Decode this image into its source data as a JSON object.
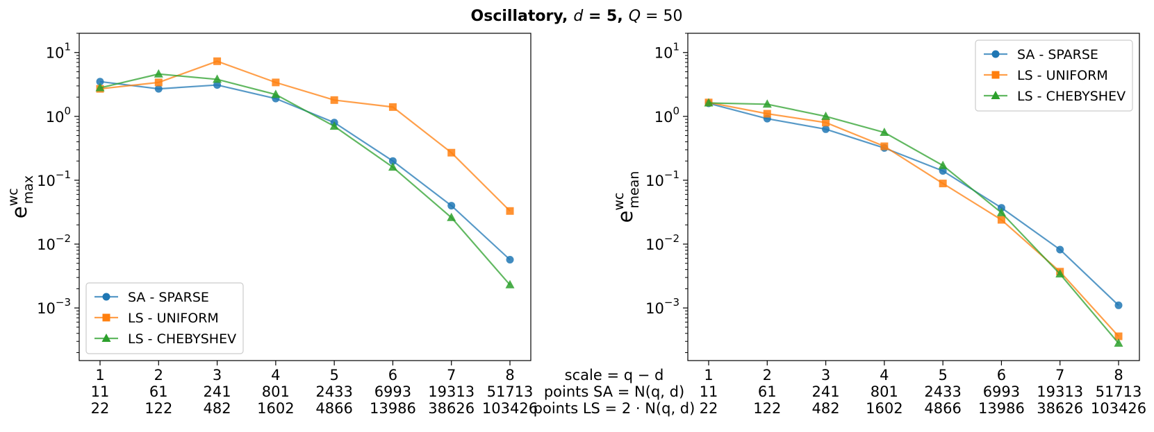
{
  "title": {
    "bold_part": "Oscillatory,",
    "d_var": "d",
    "d_value": " = 5,",
    "q_var": "Q",
    "q_value": " = 50"
  },
  "colors": {
    "sa": "#1f77b4",
    "ls_uniform": "#ff7f0e",
    "ls_chebyshev": "#2ca02c"
  },
  "x_row_labels": {
    "scale": "scale = q − d",
    "points_sa": "points SA = N(q, d)",
    "points_ls": "points LS = 2 · N(q, d)"
  },
  "chart_data": [
    {
      "type": "line",
      "yscale": "log",
      "ylabel": "e",
      "ylabel_sup": "wc",
      "ylabel_sub": "max",
      "ylim": [
        0.00015,
        20
      ],
      "yticks": [
        {
          "value": 10,
          "base": "10",
          "exp": "1"
        },
        {
          "value": 1,
          "base": "10",
          "exp": "0"
        },
        {
          "value": 0.1,
          "base": "10",
          "exp": "−1"
        },
        {
          "value": 0.01,
          "base": "10",
          "exp": "−2"
        },
        {
          "value": 0.001,
          "base": "10",
          "exp": "−3"
        }
      ],
      "x": [
        1,
        2,
        3,
        4,
        5,
        6,
        7,
        8
      ],
      "x_labels": [
        "1",
        "2",
        "3",
        "4",
        "5",
        "6",
        "7",
        "8"
      ],
      "points_sa": [
        "11",
        "61",
        "241",
        "801",
        "2433",
        "6993",
        "19313",
        "51713"
      ],
      "points_ls": [
        "22",
        "122",
        "482",
        "1602",
        "4866",
        "13986",
        "38626",
        "103426"
      ],
      "legend_position": "lower-left",
      "series": [
        {
          "name": "SA - SPARSE",
          "marker": "circle",
          "values": [
            3.5,
            2.7,
            3.1,
            1.9,
            0.8,
            0.2,
            0.04,
            0.0057
          ]
        },
        {
          "name": "LS - UNIFORM",
          "marker": "square",
          "values": [
            2.7,
            3.4,
            7.3,
            3.4,
            1.8,
            1.4,
            0.27,
            0.033
          ]
        },
        {
          "name": "LS - CHEBYSHEV",
          "marker": "triangle",
          "values": [
            2.8,
            4.6,
            3.8,
            2.2,
            0.7,
            0.16,
            0.026,
            0.0023
          ]
        }
      ]
    },
    {
      "type": "line",
      "yscale": "log",
      "ylabel": "e",
      "ylabel_sup": "wc",
      "ylabel_sub": "mean",
      "ylim": [
        0.00015,
        20
      ],
      "yticks": [
        {
          "value": 10,
          "base": "10",
          "exp": "1"
        },
        {
          "value": 1,
          "base": "10",
          "exp": "0"
        },
        {
          "value": 0.1,
          "base": "10",
          "exp": "−1"
        },
        {
          "value": 0.01,
          "base": "10",
          "exp": "−2"
        },
        {
          "value": 0.001,
          "base": "10",
          "exp": "−3"
        }
      ],
      "x": [
        1,
        2,
        3,
        4,
        5,
        6,
        7,
        8
      ],
      "x_labels": [
        "1",
        "2",
        "3",
        "4",
        "5",
        "6",
        "7",
        "8"
      ],
      "points_sa": [
        "11",
        "61",
        "241",
        "801",
        "2433",
        "6993",
        "19313",
        "51713"
      ],
      "points_ls": [
        "22",
        "122",
        "482",
        "1602",
        "4866",
        "13986",
        "38626",
        "103426"
      ],
      "legend_position": "upper-right",
      "series": [
        {
          "name": "SA - SPARSE",
          "marker": "circle",
          "values": [
            1.6,
            0.92,
            0.63,
            0.32,
            0.14,
            0.037,
            0.0082,
            0.0011
          ]
        },
        {
          "name": "LS - UNIFORM",
          "marker": "square",
          "values": [
            1.65,
            1.1,
            0.8,
            0.34,
            0.089,
            0.024,
            0.0037,
            0.00036
          ]
        },
        {
          "name": "LS - CHEBYSHEV",
          "marker": "triangle",
          "values": [
            1.62,
            1.55,
            1.0,
            0.56,
            0.17,
            0.031,
            0.0034,
            0.00028
          ]
        }
      ]
    }
  ]
}
